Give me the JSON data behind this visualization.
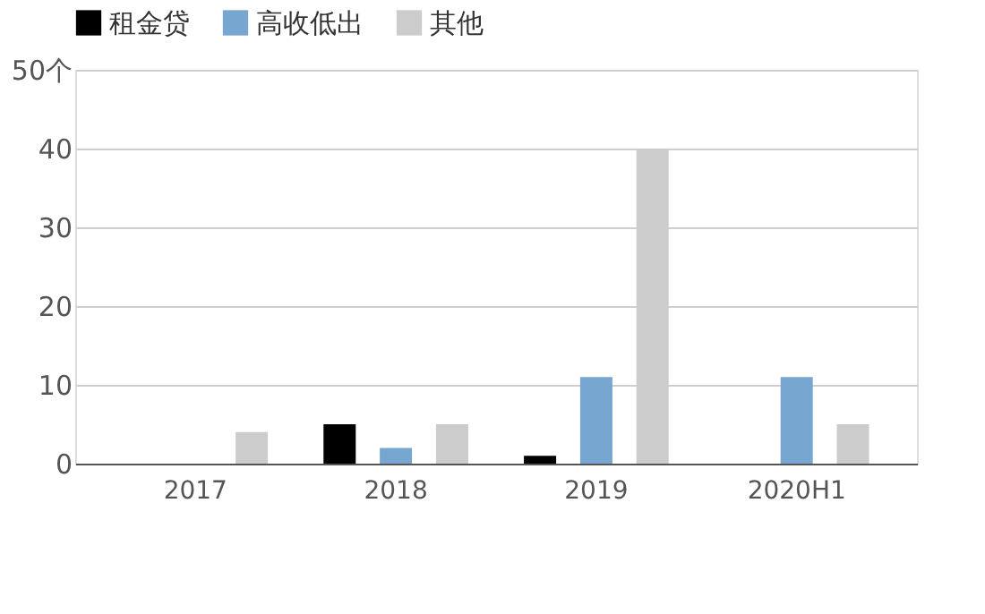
{
  "chart_data": {
    "type": "bar",
    "categories": [
      "2017",
      "2018",
      "2019",
      "2020H1"
    ],
    "series": [
      {
        "name": "租金贷",
        "color": "#000000",
        "values": [
          0,
          5,
          1,
          0
        ]
      },
      {
        "name": "高收低出",
        "color": "#77a6d1",
        "values": [
          0,
          2,
          11,
          11
        ]
      },
      {
        "name": "其他",
        "color": "#cccccc",
        "values": [
          4,
          5,
          40,
          5
        ]
      }
    ],
    "ylim": [
      0,
      50
    ],
    "yticks": [
      0,
      10,
      20,
      30,
      40,
      {
        "value": 50,
        "label": "50个"
      }
    ],
    "grid": "y",
    "legend": "top left"
  }
}
